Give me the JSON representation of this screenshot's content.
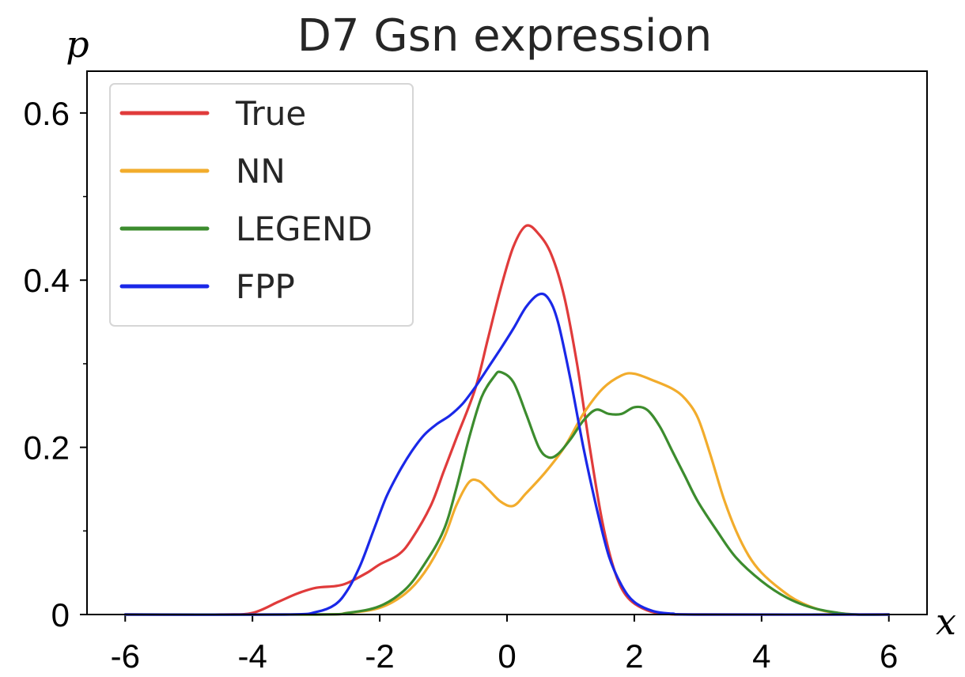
{
  "chart_data": {
    "type": "line",
    "title": "D7 Gsn expression",
    "xlabel": "x",
    "ylabel": "p",
    "xlim": [
      -6.6,
      6.6
    ],
    "ylim": [
      0,
      0.65
    ],
    "x_ticks": [
      -6,
      -4,
      -2,
      0,
      2,
      4,
      6
    ],
    "x_tick_labels": [
      "-6",
      "-4",
      "-2",
      "0",
      "2",
      "4",
      "6"
    ],
    "y_ticks": [
      0,
      0.2,
      0.4,
      0.6
    ],
    "y_tick_labels": [
      "0",
      "0.2",
      "0.4",
      "0.6"
    ],
    "y_minor_ticks": [
      0.1,
      0.3,
      0.5
    ],
    "grid": false,
    "legend_position": "top-left",
    "series": [
      {
        "name": "True",
        "color": "#e03b3b",
        "points": [
          [
            -6,
            0
          ],
          [
            -4.5,
            0
          ],
          [
            -4,
            0.002
          ],
          [
            -3.6,
            0.015
          ],
          [
            -3.3,
            0.025
          ],
          [
            -3,
            0.032
          ],
          [
            -2.7,
            0.034
          ],
          [
            -2.5,
            0.038
          ],
          [
            -2.2,
            0.05
          ],
          [
            -2,
            0.06
          ],
          [
            -1.7,
            0.072
          ],
          [
            -1.5,
            0.09
          ],
          [
            -1.2,
            0.13
          ],
          [
            -1,
            0.17
          ],
          [
            -0.8,
            0.21
          ],
          [
            -0.5,
            0.27
          ],
          [
            -0.3,
            0.33
          ],
          [
            -0.1,
            0.39
          ],
          [
            0.1,
            0.44
          ],
          [
            0.3,
            0.465
          ],
          [
            0.5,
            0.455
          ],
          [
            0.7,
            0.43
          ],
          [
            0.9,
            0.38
          ],
          [
            1.1,
            0.3
          ],
          [
            1.3,
            0.2
          ],
          [
            1.5,
            0.11
          ],
          [
            1.7,
            0.05
          ],
          [
            1.9,
            0.02
          ],
          [
            2.2,
            0.005
          ],
          [
            2.5,
            0.001
          ],
          [
            3,
            0
          ],
          [
            6,
            0
          ]
        ]
      },
      {
        "name": "NN",
        "color": "#f2ac2c",
        "points": [
          [
            -6,
            0
          ],
          [
            -3,
            0
          ],
          [
            -2.5,
            0.002
          ],
          [
            -2,
            0.008
          ],
          [
            -1.6,
            0.025
          ],
          [
            -1.3,
            0.05
          ],
          [
            -1,
            0.09
          ],
          [
            -0.8,
            0.13
          ],
          [
            -0.6,
            0.158
          ],
          [
            -0.45,
            0.16
          ],
          [
            -0.3,
            0.15
          ],
          [
            -0.1,
            0.135
          ],
          [
            0.1,
            0.13
          ],
          [
            0.3,
            0.145
          ],
          [
            0.6,
            0.17
          ],
          [
            0.9,
            0.2
          ],
          [
            1.2,
            0.24
          ],
          [
            1.5,
            0.27
          ],
          [
            1.8,
            0.286
          ],
          [
            2,
            0.288
          ],
          [
            2.3,
            0.28
          ],
          [
            2.6,
            0.27
          ],
          [
            2.8,
            0.258
          ],
          [
            3,
            0.235
          ],
          [
            3.2,
            0.19
          ],
          [
            3.4,
            0.14
          ],
          [
            3.6,
            0.1
          ],
          [
            3.8,
            0.07
          ],
          [
            4,
            0.05
          ],
          [
            4.3,
            0.03
          ],
          [
            4.6,
            0.015
          ],
          [
            5,
            0.004
          ],
          [
            5.5,
            0
          ],
          [
            6,
            0
          ]
        ]
      },
      {
        "name": "LEGEND",
        "color": "#3c8c2e",
        "points": [
          [
            -6,
            0
          ],
          [
            -3,
            0
          ],
          [
            -2.5,
            0.002
          ],
          [
            -2,
            0.01
          ],
          [
            -1.6,
            0.03
          ],
          [
            -1.3,
            0.06
          ],
          [
            -1,
            0.1
          ],
          [
            -0.8,
            0.15
          ],
          [
            -0.6,
            0.21
          ],
          [
            -0.4,
            0.26
          ],
          [
            -0.2,
            0.285
          ],
          [
            -0.1,
            0.29
          ],
          [
            0.1,
            0.278
          ],
          [
            0.3,
            0.24
          ],
          [
            0.5,
            0.2
          ],
          [
            0.65,
            0.188
          ],
          [
            0.8,
            0.192
          ],
          [
            1,
            0.21
          ],
          [
            1.2,
            0.232
          ],
          [
            1.4,
            0.245
          ],
          [
            1.6,
            0.24
          ],
          [
            1.8,
            0.24
          ],
          [
            2,
            0.248
          ],
          [
            2.2,
            0.245
          ],
          [
            2.4,
            0.225
          ],
          [
            2.6,
            0.195
          ],
          [
            2.8,
            0.165
          ],
          [
            3,
            0.135
          ],
          [
            3.3,
            0.1
          ],
          [
            3.6,
            0.068
          ],
          [
            4,
            0.04
          ],
          [
            4.4,
            0.02
          ],
          [
            4.8,
            0.008
          ],
          [
            5.2,
            0.002
          ],
          [
            5.5,
            0
          ],
          [
            6,
            0
          ]
        ]
      },
      {
        "name": "FPP",
        "color": "#1a28e8",
        "points": [
          [
            -6,
            0
          ],
          [
            -3.5,
            0
          ],
          [
            -3,
            0.003
          ],
          [
            -2.7,
            0.012
          ],
          [
            -2.5,
            0.03
          ],
          [
            -2.3,
            0.06
          ],
          [
            -2.1,
            0.1
          ],
          [
            -1.9,
            0.14
          ],
          [
            -1.7,
            0.17
          ],
          [
            -1.5,
            0.195
          ],
          [
            -1.3,
            0.215
          ],
          [
            -1.1,
            0.228
          ],
          [
            -0.9,
            0.238
          ],
          [
            -0.7,
            0.252
          ],
          [
            -0.5,
            0.272
          ],
          [
            -0.3,
            0.295
          ],
          [
            -0.1,
            0.318
          ],
          [
            0.1,
            0.342
          ],
          [
            0.3,
            0.368
          ],
          [
            0.5,
            0.383
          ],
          [
            0.65,
            0.378
          ],
          [
            0.8,
            0.35
          ],
          [
            1,
            0.28
          ],
          [
            1.2,
            0.2
          ],
          [
            1.4,
            0.13
          ],
          [
            1.6,
            0.07
          ],
          [
            1.8,
            0.035
          ],
          [
            2,
            0.015
          ],
          [
            2.3,
            0.004
          ],
          [
            2.6,
            0.001
          ],
          [
            3,
            0
          ],
          [
            6,
            0
          ]
        ]
      }
    ]
  }
}
